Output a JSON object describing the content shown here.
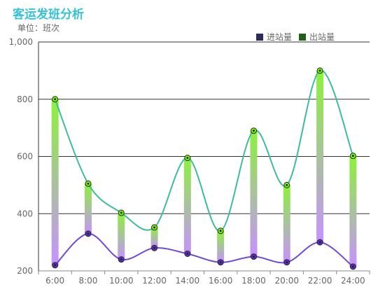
{
  "header": {
    "title": "客运发班分析",
    "unit": "单位：班次"
  },
  "legend": [
    {
      "label": "进站量",
      "color": "#2b2b5e"
    },
    {
      "label": "出站量",
      "color": "#1f5f1a"
    }
  ],
  "chart_data": {
    "type": "line",
    "categories": [
      "6:00",
      "8:00",
      "10:00",
      "12:00",
      "14:00",
      "16:00",
      "18:00",
      "20:00",
      "22:00",
      "24:00"
    ],
    "series": [
      {
        "name": "进站量",
        "values": [
          220,
          330,
          240,
          280,
          260,
          230,
          250,
          230,
          300,
          215
        ],
        "color": "#6f48d8",
        "point_color": "#5b2fc9"
      },
      {
        "name": "出站量",
        "values": [
          800,
          505,
          403,
          352,
          595,
          340,
          690,
          500,
          900,
          602
        ],
        "color": "#3dbc9d",
        "point_color": "#7cfc00"
      }
    ],
    "yticks": [
      "200",
      "400",
      "600",
      "800",
      "1,000"
    ],
    "ylim": [
      200,
      1000
    ],
    "grid": true,
    "legend_position": "top-right",
    "range_bar_gradient": [
      "#8cf23a",
      "#c792ff"
    ]
  }
}
